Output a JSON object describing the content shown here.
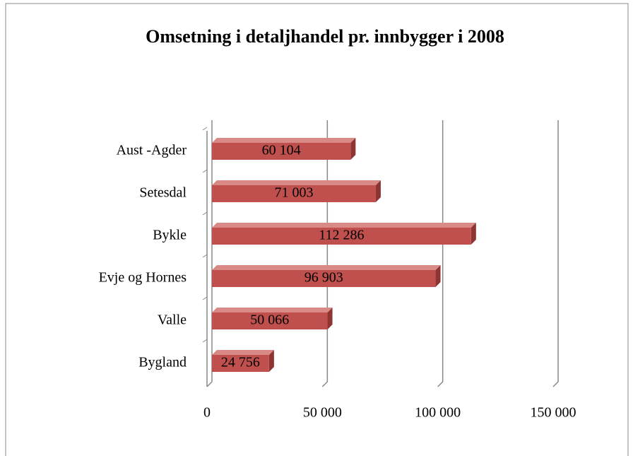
{
  "chart_data": {
    "type": "bar3d-horizontal",
    "title": "Omsetning i detaljhandel pr. innbygger i 2008",
    "categories": [
      "Aust -Agder",
      "Setesdal",
      "Bykle",
      "Evje og Hornes",
      "Valle",
      "Bygland"
    ],
    "values": [
      60104,
      71003,
      112286,
      96903,
      50066,
      24756
    ],
    "value_labels": [
      "60 104",
      "71 003",
      "112 286",
      "96 903",
      "50 066",
      "24 756"
    ],
    "color": "#c0504d",
    "xlim": [
      0,
      150000
    ],
    "xticks": [
      0,
      {
        "value": 50000,
        "label": "50 000"
      },
      {
        "value": 100000,
        "label": "100 000"
      },
      {
        "value": 150000,
        "label": "150 000"
      }
    ],
    "grid": true
  }
}
